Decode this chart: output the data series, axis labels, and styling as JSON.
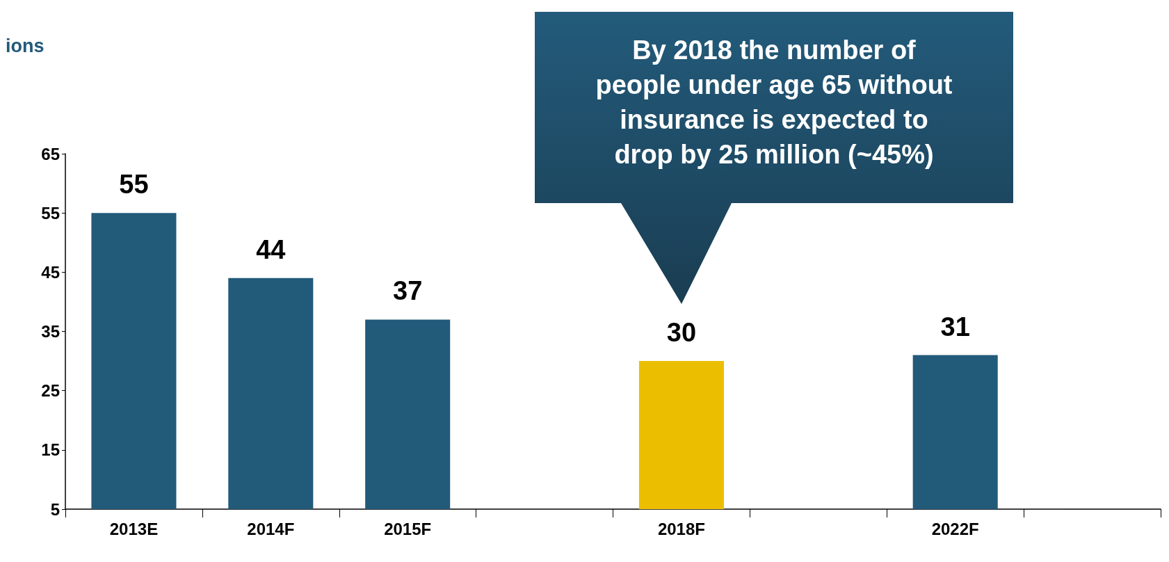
{
  "chart_data": {
    "type": "bar",
    "ylabel": "ions",
    "categories": [
      "2013E",
      "2014F",
      "2015F",
      null,
      "2018F",
      null,
      "2022F",
      null
    ],
    "values": [
      55,
      44,
      37,
      null,
      30,
      null,
      31,
      null
    ],
    "colors": [
      "#225a7a",
      "#225a7a",
      "#225a7a",
      null,
      "#ebbf00",
      null,
      "#225a7a",
      null
    ],
    "ylim": [
      5,
      65
    ],
    "yticks": [
      5,
      15,
      25,
      35,
      45,
      55,
      65
    ],
    "grid": false,
    "data_labels": true,
    "annotations": [
      "By 2018 the number of\npeople under age 65 without\ninsurance is expected to\ndrop by 25 million (~45%)"
    ]
  }
}
